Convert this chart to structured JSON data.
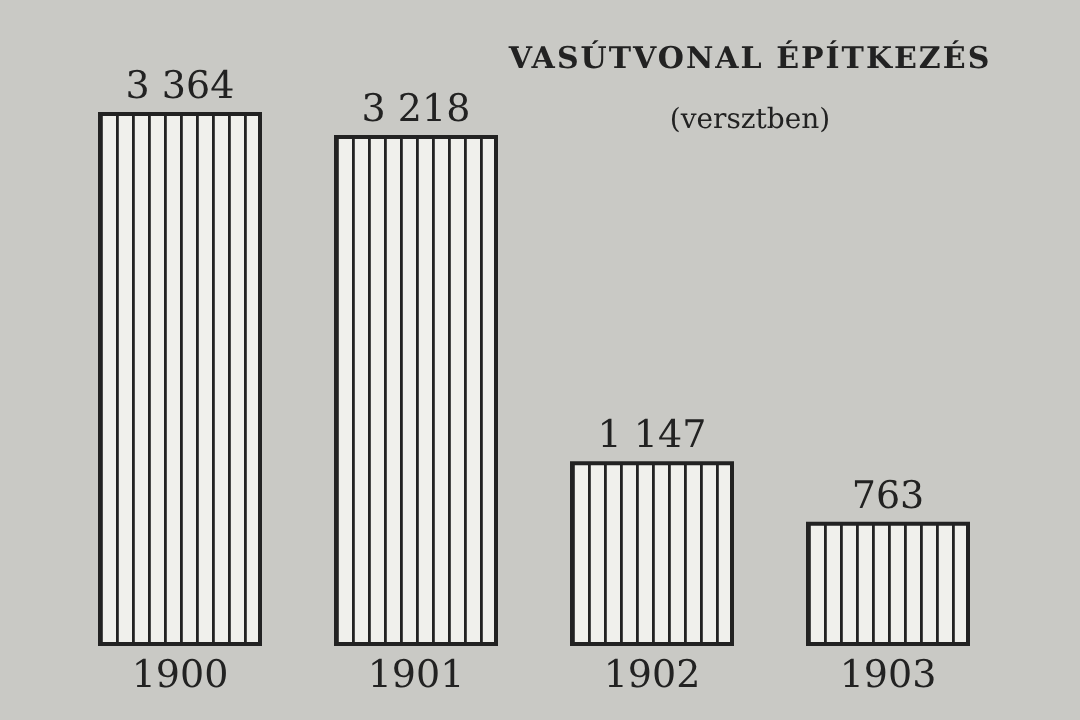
{
  "chart_data": {
    "type": "bar",
    "title": "VASÚTVONAL ÉPÍTKEZÉS",
    "subtitle": "(versztben)",
    "categories": [
      "1900",
      "1901",
      "1902",
      "1903"
    ],
    "values": [
      3364,
      3218,
      1147,
      763
    ],
    "value_labels": [
      "3 364",
      "3 218",
      "1 147",
      "763"
    ],
    "color": "#f0f0ec"
  }
}
